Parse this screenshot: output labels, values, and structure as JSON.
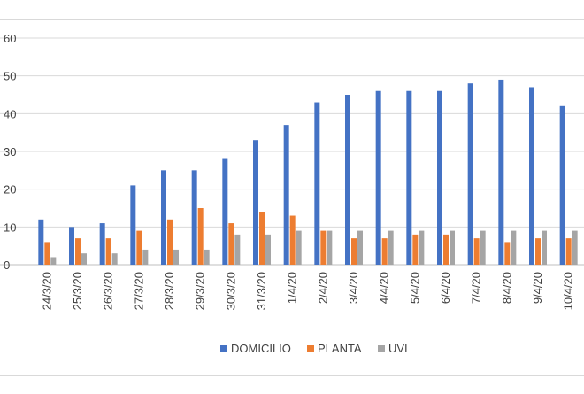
{
  "chart_data": {
    "type": "bar",
    "title": "",
    "xlabel": "",
    "ylabel": "",
    "ylim": [
      0,
      60
    ],
    "yticks": [
      0,
      10,
      20,
      30,
      40,
      50,
      60
    ],
    "grid": true,
    "legend_position": "bottom",
    "categories": [
      "24/3/20",
      "25/3/20",
      "26/3/20",
      "27/3/20",
      "28/3/20",
      "29/3/20",
      "30/3/20",
      "31/3/20",
      "1/4/20",
      "2/4/20",
      "3/4/20",
      "4/4/20",
      "5/4/20",
      "6/4/20",
      "7/4/20",
      "8/4/20",
      "9/4/20",
      "10/4/20"
    ],
    "series": [
      {
        "name": "DOMICILIO",
        "color": "#4472C4",
        "values": [
          12,
          10,
          11,
          21,
          25,
          25,
          28,
          33,
          37,
          43,
          45,
          46,
          46,
          46,
          48,
          49,
          47,
          42
        ]
      },
      {
        "name": "PLANTA",
        "color": "#ED7D31",
        "values": [
          6,
          7,
          7,
          9,
          12,
          15,
          11,
          14,
          13,
          9,
          7,
          7,
          8,
          8,
          7,
          6,
          7,
          7
        ]
      },
      {
        "name": "UVI",
        "color": "#A5A5A5",
        "values": [
          2,
          3,
          3,
          4,
          4,
          4,
          8,
          8,
          9,
          9,
          9,
          9,
          9,
          9,
          9,
          9,
          9,
          9
        ]
      }
    ]
  }
}
